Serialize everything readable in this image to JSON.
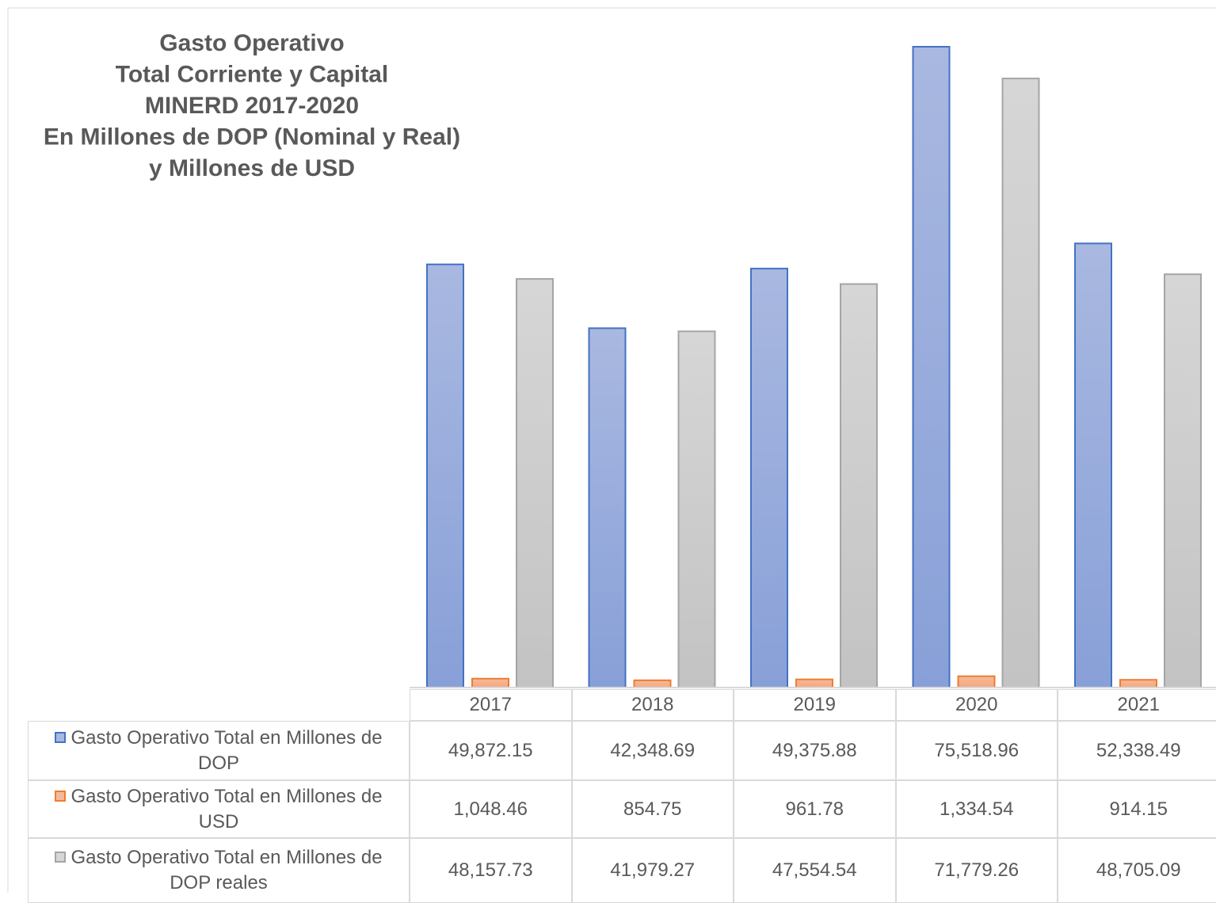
{
  "chart_data": {
    "type": "bar",
    "title": [
      "Gasto Operativo",
      "Total Corriente y Capital",
      "MINERD 2017-2020",
      "En Millones de DOP (Nominal y Real)",
      "y Millones de USD"
    ],
    "categories": [
      "2017",
      "2018",
      "2019",
      "2020",
      "2021"
    ],
    "ylim": [
      0,
      80000
    ],
    "series": [
      {
        "name": "Gasto Operativo Total en Millones de DOP",
        "color": "#4472c4",
        "fill": [
          "#a9b8e0",
          "#88a0d8"
        ],
        "values": [
          49872.15,
          42348.69,
          49375.88,
          75518.96,
          52338.49
        ],
        "value_labels": [
          "49,872.15",
          "42,348.69",
          "49,375.88",
          "75,518.96",
          "52,338.49"
        ]
      },
      {
        "name": "Gasto Operativo Total en Millones de USD",
        "color": "#ed7d31",
        "fill": [
          "#f7b99a",
          "#f4a77e"
        ],
        "values": [
          1048.46,
          854.75,
          961.78,
          1334.54,
          914.15
        ],
        "value_labels": [
          "1,048.46",
          "854.75",
          "961.78",
          "1,334.54",
          "914.15"
        ]
      },
      {
        "name": "Gasto Operativo Total en Millones de DOP reales",
        "color": "#a5a5a5",
        "fill": [
          "#d6d6d6",
          "#c3c3c3"
        ],
        "values": [
          48157.73,
          41979.27,
          47554.54,
          71779.26,
          48705.09
        ],
        "value_labels": [
          "48,157.73",
          "41,979.27",
          "47,554.54",
          "71,779.26",
          "48,705.09"
        ]
      }
    ]
  }
}
